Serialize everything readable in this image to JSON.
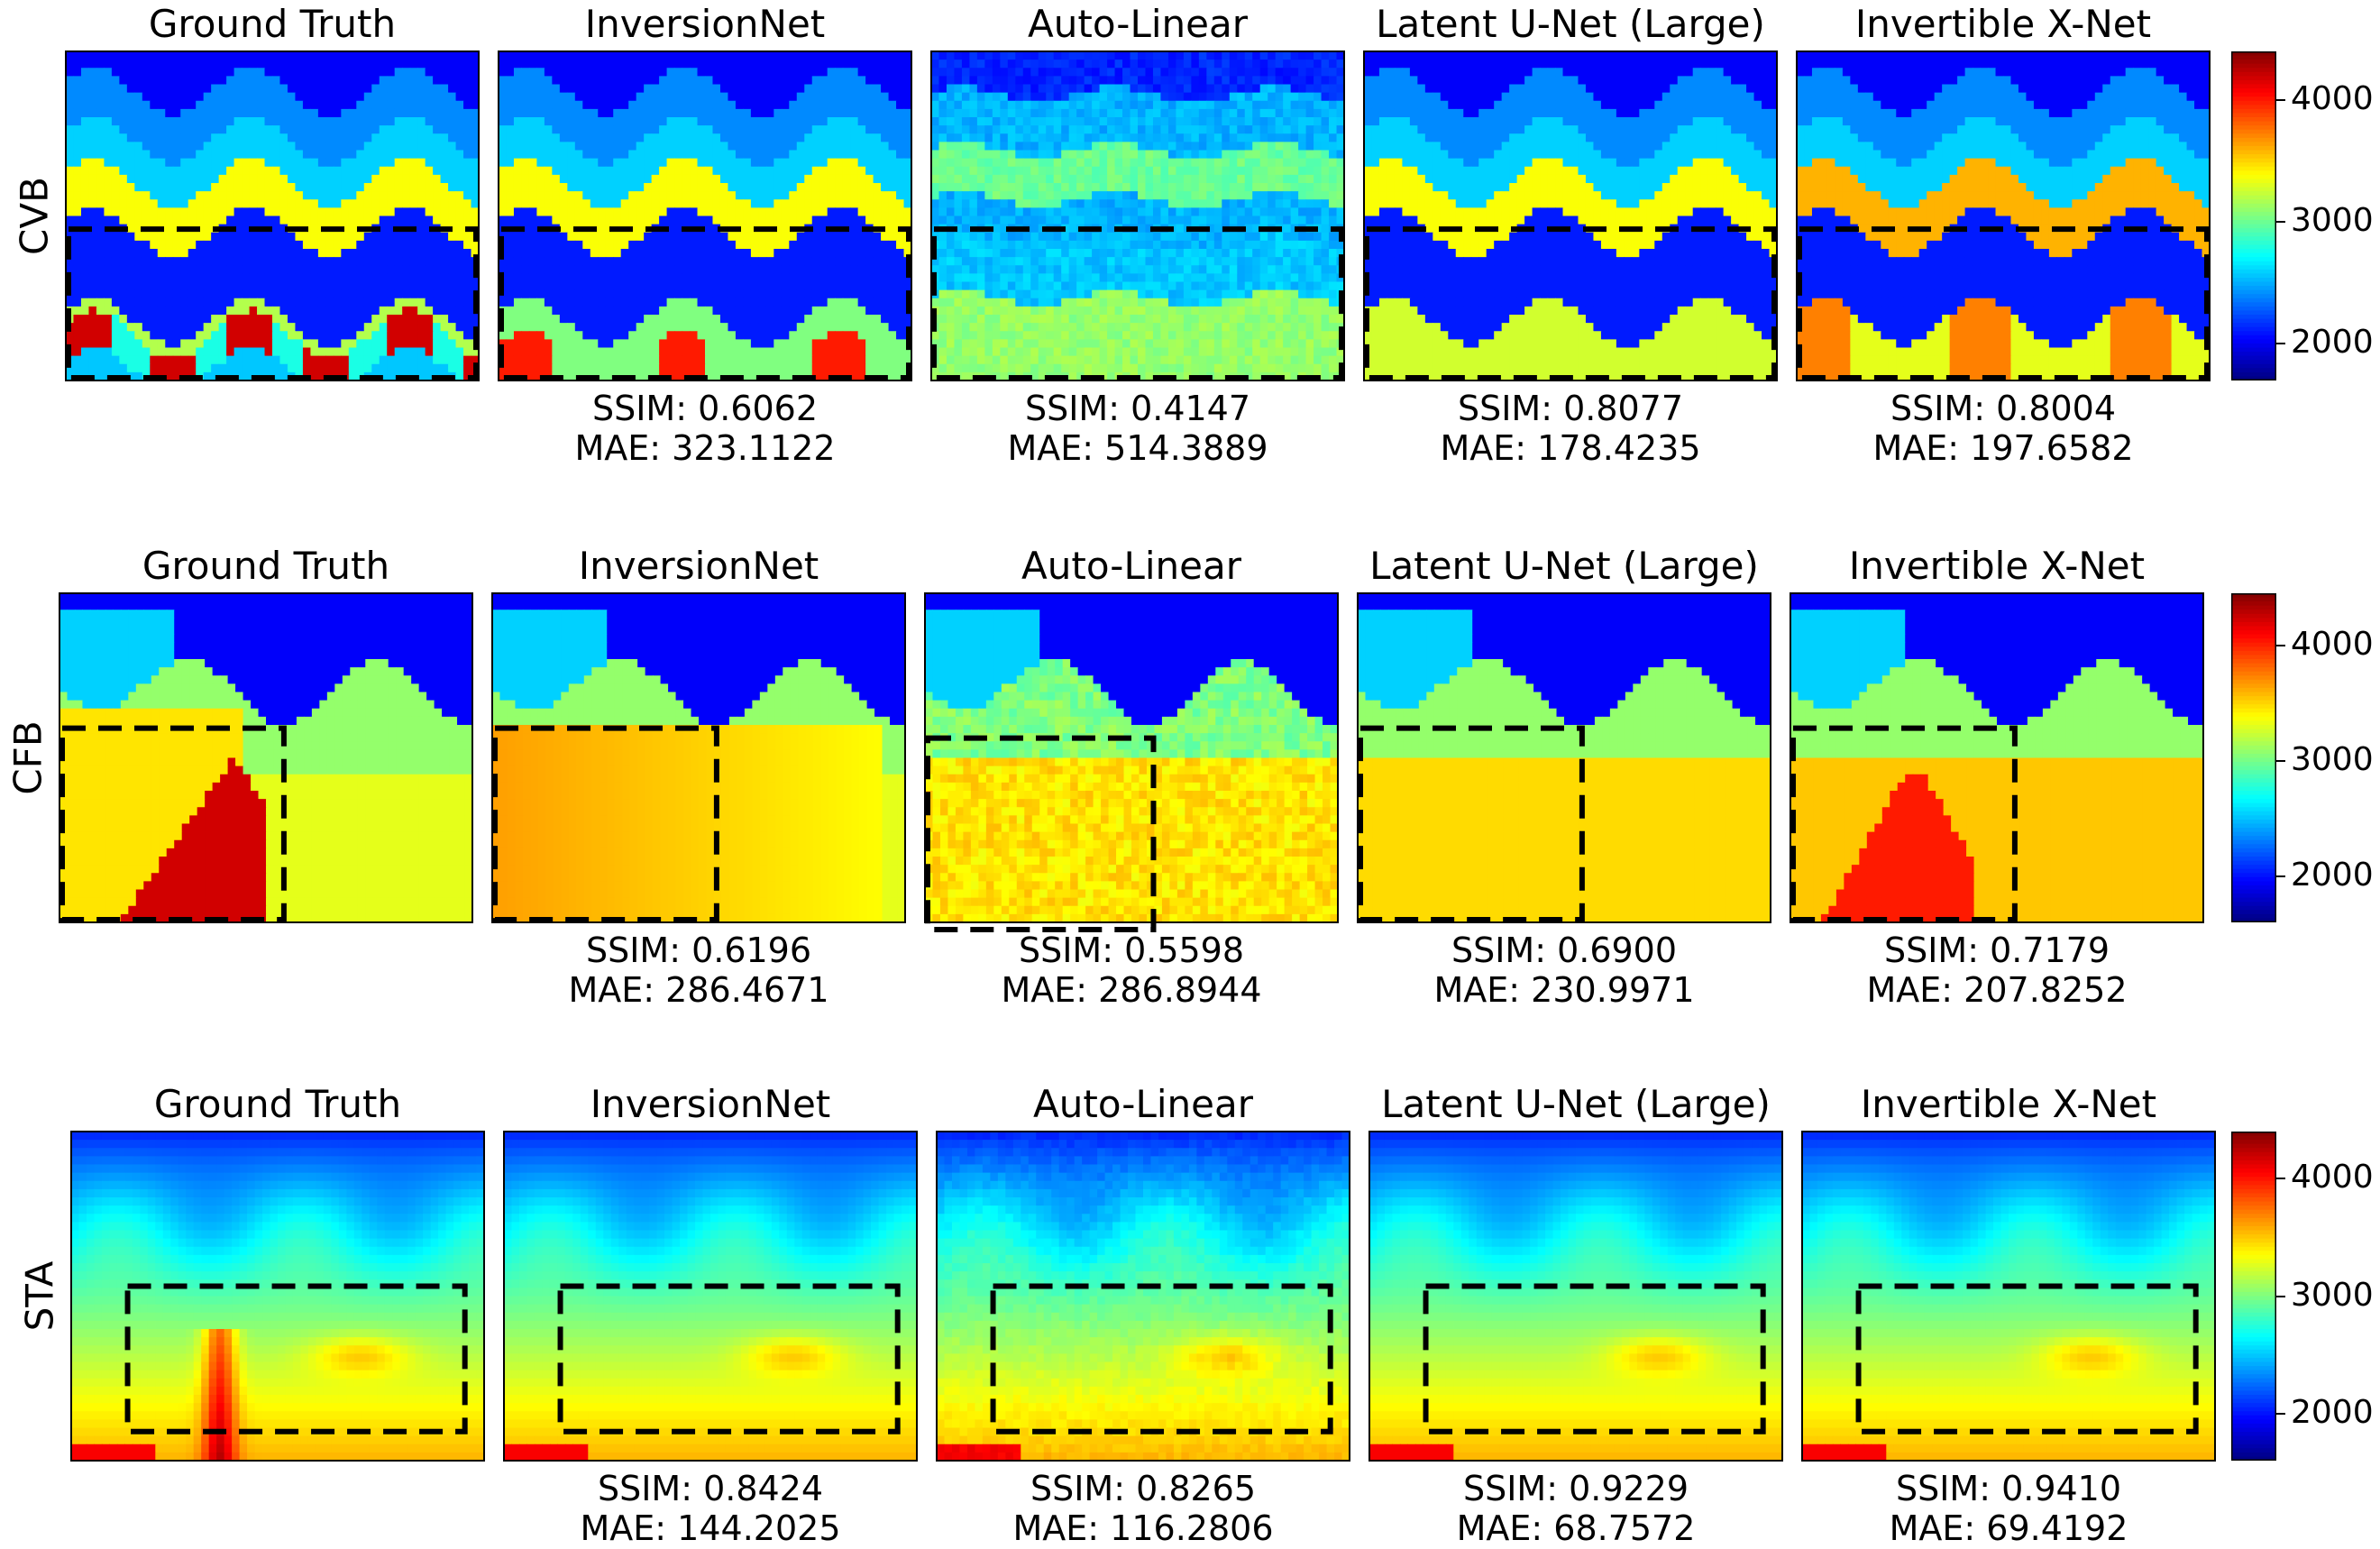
{
  "chart_data": {
    "type": "heatmap",
    "colormap": "jet",
    "columns": [
      "Ground Truth",
      "InversionNet",
      "Auto-Linear",
      "Latent U-Net (Large)",
      "Invertible X-Net"
    ],
    "rows": [
      {
        "label": "CVB",
        "colorbar": {
          "range": [
            1700,
            4400
          ],
          "ticks": [
            "2000",
            "3000",
            "4000"
          ]
        },
        "metrics": [
          null,
          {
            "ssim": "SSIM: 0.6062",
            "mae": "MAE: 323.1122"
          },
          {
            "ssim": "SSIM: 0.4147",
            "mae": "MAE: 514.3889"
          },
          {
            "ssim": "SSIM: 0.8077",
            "mae": "MAE: 178.4235"
          },
          {
            "ssim": "SSIM: 0.8004",
            "mae": "MAE: 197.6582"
          }
        ]
      },
      {
        "label": "CFB",
        "colorbar": {
          "range": [
            1600,
            4450
          ],
          "ticks": [
            "2000",
            "3000",
            "4000"
          ]
        },
        "metrics": [
          null,
          {
            "ssim": "SSIM: 0.6196",
            "mae": "MAE: 286.4671"
          },
          {
            "ssim": "SSIM: 0.5598",
            "mae": "MAE: 286.8944"
          },
          {
            "ssim": "SSIM: 0.6900",
            "mae": "MAE: 230.9971"
          },
          {
            "ssim": "SSIM: 0.7179",
            "mae": "MAE: 207.8252"
          }
        ]
      },
      {
        "label": "STA",
        "colorbar": {
          "range": [
            1600,
            4400
          ],
          "ticks": [
            "2000",
            "3000",
            "4000"
          ]
        },
        "metrics": [
          null,
          {
            "ssim": "SSIM: 0.8424",
            "mae": "MAE: 144.2025"
          },
          {
            "ssim": "SSIM: 0.8265",
            "mae": "MAE: 116.2806"
          },
          {
            "ssim": "SSIM: 0.9229",
            "mae": "MAE: 68.7572"
          },
          {
            "ssim": "SSIM: 0.9410",
            "mae": "MAE: 69.4192"
          }
        ]
      }
    ]
  },
  "colors": {
    "jet": [
      "#00007f",
      "#0000ff",
      "#007fff",
      "#00ffff",
      "#7fff7f",
      "#ffff00",
      "#ff7f00",
      "#ff0000",
      "#7f0000"
    ],
    "box_stroke": "#000000"
  }
}
